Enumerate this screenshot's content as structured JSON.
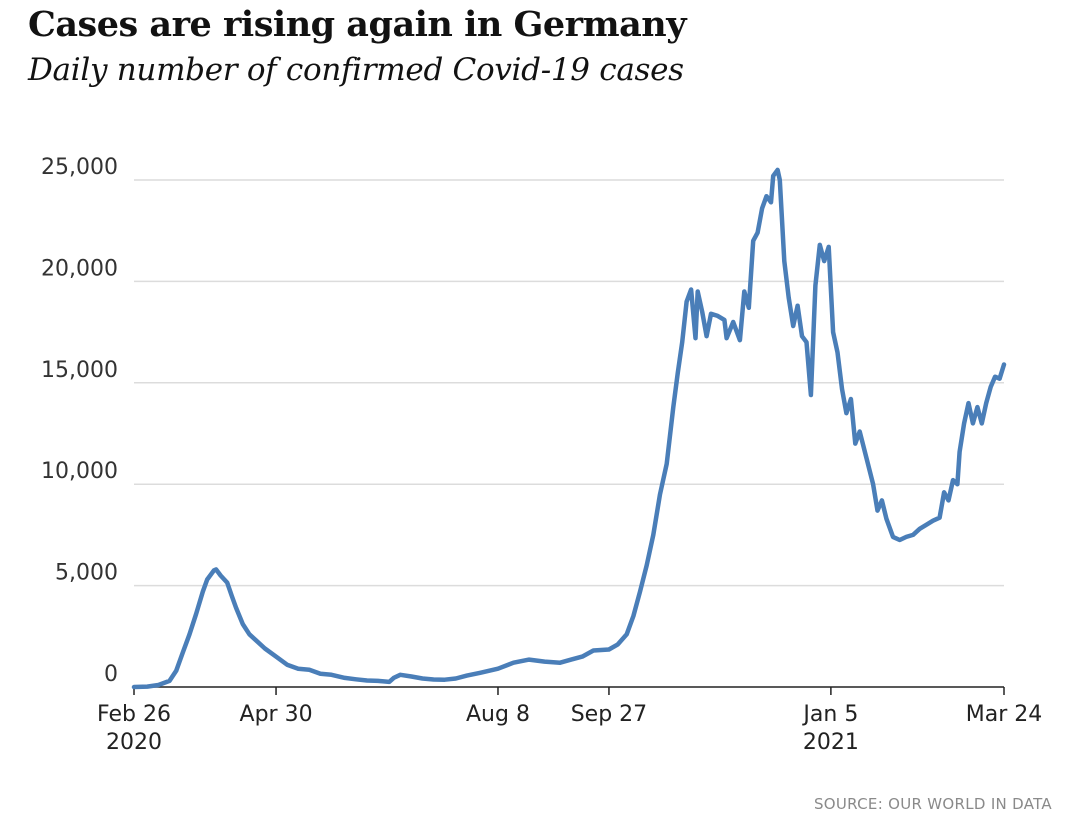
{
  "chart_data": {
    "type": "line",
    "title": "Cases are rising again in Germany",
    "subtitle": "Daily number of confirmed Covid-19 cases",
    "source": "SOURCE: OUR WORLD IN DATA",
    "xlabel": "",
    "ylabel": "",
    "ylim": [
      0,
      25000
    ],
    "grid": true,
    "yticks": [
      {
        "value": 0,
        "label": "0"
      },
      {
        "value": 5000,
        "label": "5,000"
      },
      {
        "value": 10000,
        "label": "10,000"
      },
      {
        "value": 15000,
        "label": "15,000"
      },
      {
        "value": 20000,
        "label": "20,000"
      },
      {
        "value": 25000,
        "label": "25,000"
      }
    ],
    "xlim": [
      "2020-02-26",
      "2021-03-24"
    ],
    "xticks": [
      {
        "date": "2020-02-26",
        "label": "Feb 26",
        "sublabel": "2020"
      },
      {
        "date": "2020-04-30",
        "label": "Apr 30"
      },
      {
        "date": "2020-08-08",
        "label": "Aug 8"
      },
      {
        "date": "2020-09-27",
        "label": "Sep 27"
      },
      {
        "date": "2021-01-05",
        "label": "Jan 5",
        "sublabel": "2021"
      },
      {
        "date": "2021-03-24",
        "label": "Mar 24"
      }
    ],
    "series": [
      {
        "name": "Daily confirmed cases",
        "color": "#4a7eb8",
        "points": [
          [
            "2020-02-26",
            0
          ],
          [
            "2020-03-03",
            20
          ],
          [
            "2020-03-08",
            100
          ],
          [
            "2020-03-13",
            300
          ],
          [
            "2020-03-16",
            800
          ],
          [
            "2020-03-19",
            1700
          ],
          [
            "2020-03-22",
            2600
          ],
          [
            "2020-03-25",
            3600
          ],
          [
            "2020-03-28",
            4700
          ],
          [
            "2020-03-30",
            5300
          ],
          [
            "2020-04-02",
            5750
          ],
          [
            "2020-04-03",
            5800
          ],
          [
            "2020-04-05",
            5500
          ],
          [
            "2020-04-08",
            5150
          ],
          [
            "2020-04-10",
            4500
          ],
          [
            "2020-04-12",
            3900
          ],
          [
            "2020-04-15",
            3100
          ],
          [
            "2020-04-18",
            2600
          ],
          [
            "2020-04-21",
            2300
          ],
          [
            "2020-04-25",
            1900
          ],
          [
            "2020-04-30",
            1500
          ],
          [
            "2020-05-05",
            1100
          ],
          [
            "2020-05-10",
            900
          ],
          [
            "2020-05-15",
            850
          ],
          [
            "2020-05-20",
            650
          ],
          [
            "2020-05-25",
            600
          ],
          [
            "2020-05-31",
            450
          ],
          [
            "2020-06-05",
            380
          ],
          [
            "2020-06-10",
            320
          ],
          [
            "2020-06-15",
            300
          ],
          [
            "2020-06-20",
            250
          ],
          [
            "2020-06-22",
            450
          ],
          [
            "2020-06-25",
            600
          ],
          [
            "2020-06-30",
            520
          ],
          [
            "2020-07-05",
            420
          ],
          [
            "2020-07-10",
            370
          ],
          [
            "2020-07-15",
            360
          ],
          [
            "2020-07-20",
            420
          ],
          [
            "2020-07-25",
            560
          ],
          [
            "2020-07-31",
            700
          ],
          [
            "2020-08-08",
            900
          ],
          [
            "2020-08-15",
            1200
          ],
          [
            "2020-08-22",
            1350
          ],
          [
            "2020-08-29",
            1250
          ],
          [
            "2020-09-05",
            1200
          ],
          [
            "2020-09-10",
            1350
          ],
          [
            "2020-09-15",
            1500
          ],
          [
            "2020-09-20",
            1800
          ],
          [
            "2020-09-27",
            1850
          ],
          [
            "2020-10-01",
            2100
          ],
          [
            "2020-10-05",
            2600
          ],
          [
            "2020-10-08",
            3500
          ],
          [
            "2020-10-11",
            4700
          ],
          [
            "2020-10-14",
            6000
          ],
          [
            "2020-10-17",
            7500
          ],
          [
            "2020-10-20",
            9500
          ],
          [
            "2020-10-23",
            11000
          ],
          [
            "2020-10-26",
            13800
          ],
          [
            "2020-10-28",
            15500
          ],
          [
            "2020-10-30",
            17000
          ],
          [
            "2020-11-01",
            19000
          ],
          [
            "2020-11-03",
            19600
          ],
          [
            "2020-11-05",
            17200
          ],
          [
            "2020-11-06",
            19500
          ],
          [
            "2020-11-08",
            18500
          ],
          [
            "2020-11-10",
            17300
          ],
          [
            "2020-11-12",
            18400
          ],
          [
            "2020-11-15",
            18300
          ],
          [
            "2020-11-18",
            18100
          ],
          [
            "2020-11-19",
            17200
          ],
          [
            "2020-11-22",
            18000
          ],
          [
            "2020-11-25",
            17100
          ],
          [
            "2020-11-27",
            19500
          ],
          [
            "2020-11-29",
            18700
          ],
          [
            "2020-12-01",
            22000
          ],
          [
            "2020-12-03",
            22400
          ],
          [
            "2020-12-05",
            23600
          ],
          [
            "2020-12-07",
            24200
          ],
          [
            "2020-12-09",
            23900
          ],
          [
            "2020-12-10",
            25200
          ],
          [
            "2020-12-12",
            25500
          ],
          [
            "2020-12-13",
            25000
          ],
          [
            "2020-12-15",
            21000
          ],
          [
            "2020-12-17",
            19200
          ],
          [
            "2020-12-19",
            17800
          ],
          [
            "2020-12-21",
            18800
          ],
          [
            "2020-12-23",
            17300
          ],
          [
            "2020-12-25",
            17000
          ],
          [
            "2020-12-27",
            14400
          ],
          [
            "2020-12-29",
            19800
          ],
          [
            "2020-12-31",
            21800
          ],
          [
            "2021-01-02",
            21000
          ],
          [
            "2021-01-04",
            21700
          ],
          [
            "2021-01-06",
            17500
          ],
          [
            "2021-01-08",
            16500
          ],
          [
            "2021-01-10",
            14700
          ],
          [
            "2021-01-12",
            13500
          ],
          [
            "2021-01-14",
            14200
          ],
          [
            "2021-01-16",
            12000
          ],
          [
            "2021-01-18",
            12600
          ],
          [
            "2021-01-21",
            11300
          ],
          [
            "2021-01-24",
            10000
          ],
          [
            "2021-01-26",
            8700
          ],
          [
            "2021-01-28",
            9200
          ],
          [
            "2021-01-30",
            8300
          ],
          [
            "2021-02-02",
            7400
          ],
          [
            "2021-02-05",
            7250
          ],
          [
            "2021-02-08",
            7400
          ],
          [
            "2021-02-11",
            7500
          ],
          [
            "2021-02-14",
            7800
          ],
          [
            "2021-02-17",
            8000
          ],
          [
            "2021-02-20",
            8200
          ],
          [
            "2021-02-23",
            8350
          ],
          [
            "2021-02-25",
            9600
          ],
          [
            "2021-02-27",
            9200
          ],
          [
            "2021-03-01",
            10200
          ],
          [
            "2021-03-03",
            10000
          ],
          [
            "2021-03-04",
            11600
          ],
          [
            "2021-03-06",
            13000
          ],
          [
            "2021-03-08",
            14000
          ],
          [
            "2021-03-10",
            13000
          ],
          [
            "2021-03-12",
            13800
          ],
          [
            "2021-03-14",
            13000
          ],
          [
            "2021-03-16",
            14000
          ],
          [
            "2021-03-18",
            14800
          ],
          [
            "2021-03-20",
            15300
          ],
          [
            "2021-03-22",
            15200
          ],
          [
            "2021-03-24",
            15900
          ]
        ]
      }
    ]
  }
}
